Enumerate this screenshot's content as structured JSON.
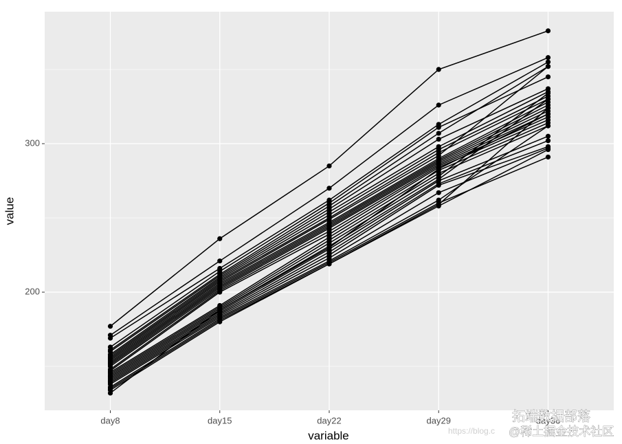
{
  "chart_data": {
    "type": "line",
    "x_label": "variable",
    "y_label": "value",
    "categories": [
      "day8",
      "day15",
      "day22",
      "day29",
      "day36"
    ],
    "color": "#000000",
    "ylim": [
      120.4,
      388.9
    ],
    "yticks": [
      200,
      300
    ],
    "y_minor_ticks": [
      150,
      250,
      350
    ],
    "grid": true,
    "annotations": [
      "拓端数据部落",
      "https://blog.c",
      "@稀土掘金技术社区"
    ],
    "series": [
      {
        "values": [
          177,
          236,
          285,
          350,
          376
        ]
      },
      {
        "values": [
          171,
          221,
          270,
          326,
          358
        ]
      },
      {
        "values": [
          169,
          216,
          262,
          313,
          355
        ]
      },
      {
        "values": [
          163,
          214,
          260,
          311,
          345
        ]
      },
      {
        "values": [
          161,
          212,
          258,
          307,
          352
        ]
      },
      {
        "values": [
          160,
          211,
          256,
          303,
          337
        ]
      },
      {
        "values": [
          158,
          210,
          254,
          298,
          335
        ]
      },
      {
        "values": [
          157,
          209,
          252,
          296,
          332
        ]
      },
      {
        "values": [
          156,
          208,
          250,
          294,
          330
        ]
      },
      {
        "values": [
          155,
          207,
          249,
          292,
          352
        ]
      },
      {
        "values": [
          154,
          206,
          247,
          290,
          328
        ]
      },
      {
        "values": [
          153,
          205,
          246,
          289,
          326
        ]
      },
      {
        "values": [
          152,
          204,
          245,
          288,
          324
        ]
      },
      {
        "values": [
          151,
          203,
          244,
          287,
          322
        ]
      },
      {
        "values": [
          150,
          202,
          243,
          286,
          320
        ]
      },
      {
        "values": [
          148,
          201,
          241,
          285,
          318
        ]
      },
      {
        "values": [
          147,
          200,
          239,
          284,
          316
        ]
      },
      {
        "values": [
          146,
          191,
          237,
          282,
          314
        ]
      },
      {
        "values": [
          145,
          190,
          235,
          280,
          312
        ]
      },
      {
        "values": [
          144,
          189,
          233,
          278,
          334
        ]
      },
      {
        "values": [
          143,
          188,
          231,
          276,
          330
        ]
      },
      {
        "values": [
          142,
          187,
          229,
          275,
          305
        ]
      },
      {
        "values": [
          141,
          186,
          227,
          273,
          302
        ]
      },
      {
        "values": [
          140,
          185,
          225,
          272,
          298
        ]
      },
      {
        "values": [
          139,
          184,
          223,
          267,
          297
        ]
      },
      {
        "values": [
          138,
          183,
          221,
          262,
          312
        ]
      },
      {
        "values": [
          136,
          182,
          220,
          260,
          291
        ]
      },
      {
        "values": [
          135,
          181,
          219,
          258,
          296
        ]
      },
      {
        "values": [
          134,
          180,
          219,
          259,
          324
        ]
      },
      {
        "values": [
          132,
          188,
          230,
          283,
          320
        ]
      }
    ]
  }
}
